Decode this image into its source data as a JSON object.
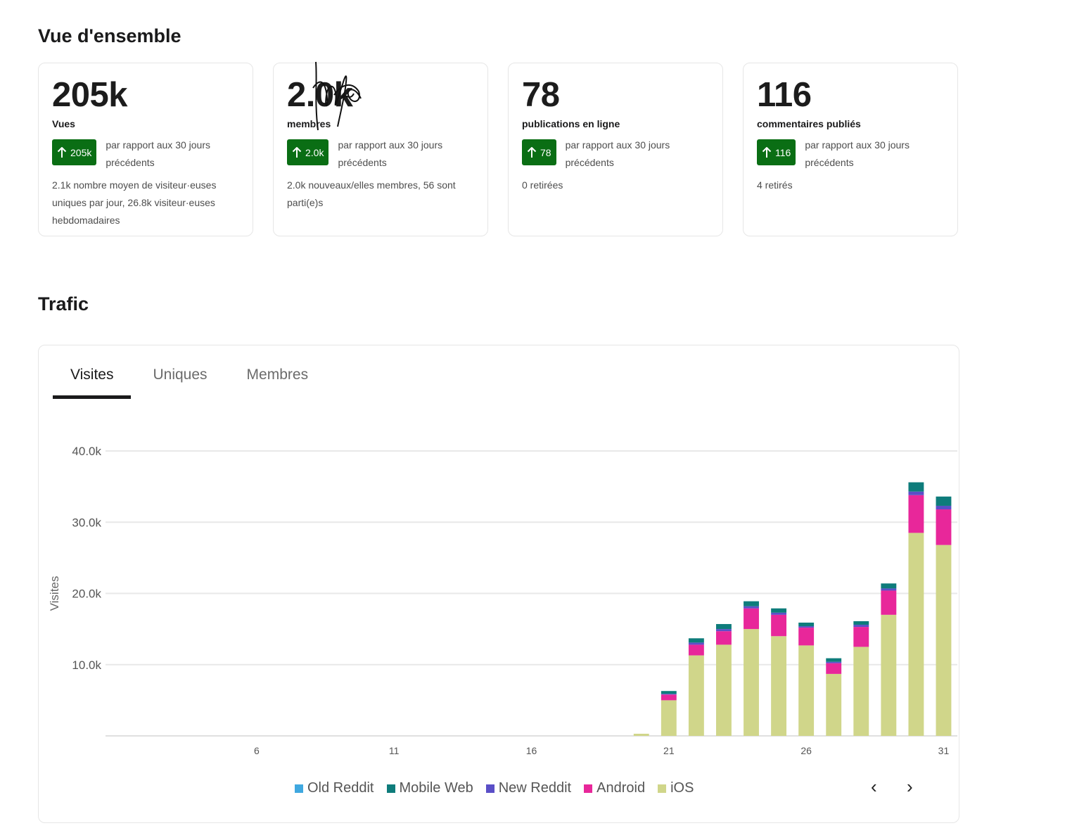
{
  "overview": {
    "title": "Vue d'ensemble",
    "cards": [
      {
        "value": "205k",
        "label": "Vues",
        "delta": "205k",
        "delta_note": "par rapport aux 30 jours précédents",
        "foot": "2.1k nombre moyen de visiteur·euses uniques par jour, 26.8k visiteur·euses hebdomadaires"
      },
      {
        "value": "2.0k",
        "label": "membres",
        "delta": "2.0k",
        "delta_note": "par rapport aux 30 jours précédents",
        "foot": "2.0k nouveaux/elles membres, 56 sont parti(e)s"
      },
      {
        "value": "78",
        "label": "publications en ligne",
        "delta": "78",
        "delta_note": "par rapport aux 30 jours précédents",
        "foot": "0 retirées"
      },
      {
        "value": "116",
        "label": "commentaires publiés",
        "delta": "116",
        "delta_note": "par rapport aux 30 jours précédents",
        "foot": "4 retirés"
      }
    ]
  },
  "traffic": {
    "title": "Trafic",
    "tabs": [
      "Visites",
      "Uniques",
      "Membres"
    ],
    "active_tab": 0,
    "pager": {
      "prev": "‹",
      "next": "›"
    }
  },
  "colors": {
    "delta_green": "#0a6e14"
  },
  "chart_data": {
    "type": "bar",
    "stacked": true,
    "ylabel": "Visites",
    "xlabel": "",
    "ylim": [
      0,
      40000
    ],
    "yticks": [
      10000,
      20000,
      30000,
      40000
    ],
    "ytick_labels": [
      "10.0k",
      "20.0k",
      "30.0k",
      "40.0k"
    ],
    "xticks": [
      6,
      11,
      16,
      21,
      26,
      31
    ],
    "categories": [
      1,
      2,
      3,
      4,
      5,
      6,
      7,
      8,
      9,
      10,
      11,
      12,
      13,
      14,
      15,
      16,
      17,
      18,
      19,
      20,
      21,
      22,
      23,
      24,
      25,
      26,
      27,
      28,
      29,
      30,
      31
    ],
    "legend_position": "bottom",
    "series": [
      {
        "name": "iOS",
        "color": "#d0d68a",
        "values": [
          0,
          0,
          0,
          0,
          0,
          0,
          0,
          0,
          0,
          0,
          0,
          0,
          0,
          0,
          0,
          0,
          0,
          0,
          0,
          300,
          5000,
          11300,
          12800,
          15000,
          14000,
          12700,
          8700,
          12500,
          17000,
          28500,
          26800
        ]
      },
      {
        "name": "Android",
        "color": "#e8279a",
        "values": [
          0,
          0,
          0,
          0,
          0,
          0,
          0,
          0,
          0,
          0,
          0,
          0,
          0,
          0,
          0,
          0,
          0,
          0,
          0,
          0,
          800,
          1500,
          1900,
          2900,
          3000,
          2500,
          1500,
          2800,
          3400,
          5300,
          5000
        ]
      },
      {
        "name": "New Reddit",
        "color": "#5a4fc7",
        "values": [
          0,
          0,
          0,
          0,
          0,
          0,
          0,
          0,
          0,
          0,
          0,
          0,
          0,
          0,
          0,
          0,
          0,
          0,
          0,
          0,
          100,
          300,
          300,
          300,
          300,
          200,
          200,
          300,
          300,
          500,
          500
        ]
      },
      {
        "name": "Mobile Web",
        "color": "#0e7c7b",
        "values": [
          0,
          0,
          0,
          0,
          0,
          0,
          0,
          0,
          0,
          0,
          0,
          0,
          0,
          0,
          0,
          0,
          0,
          0,
          0,
          0,
          400,
          600,
          700,
          700,
          600,
          500,
          500,
          500,
          700,
          1300,
          1300
        ]
      },
      {
        "name": "Old Reddit",
        "color": "#3fa8e0",
        "values": [
          0,
          0,
          0,
          0,
          0,
          0,
          0,
          0,
          0,
          0,
          0,
          0,
          0,
          0,
          0,
          0,
          0,
          0,
          0,
          0,
          0,
          0,
          0,
          0,
          0,
          0,
          0,
          0,
          0,
          0,
          0
        ]
      }
    ],
    "legend_order": [
      "Old Reddit",
      "Mobile Web",
      "New Reddit",
      "Android",
      "iOS"
    ]
  }
}
